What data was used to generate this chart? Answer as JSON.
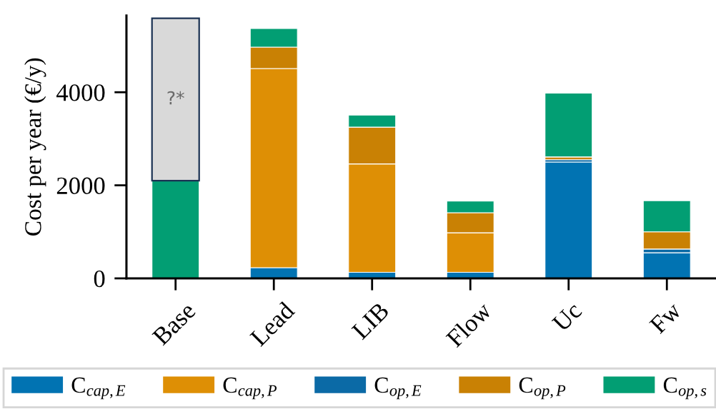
{
  "chart_data": {
    "type": "bar",
    "stacked": true,
    "categories": [
      "Base",
      "Lead",
      "LIB",
      "Flow",
      "Uc",
      "Fw"
    ],
    "ylabel": "Cost per year (€/y)",
    "ylim": [
      0,
      5650
    ],
    "yticks": [
      0,
      2000,
      4000
    ],
    "legend": "bottom",
    "series": [
      {
        "name": "C$_{cap,E}$",
        "color": "#0173b2",
        "values": [
          null,
          230,
          130,
          130,
          2500,
          550
        ]
      },
      {
        "name": "C$_{cap,P}$",
        "color": "#de8f05",
        "values": [
          null,
          4280,
          2330,
          850,
          null,
          null
        ]
      },
      {
        "name": "C$_{op,E}$",
        "color": "#0b6aa6",
        "values": [
          null,
          null,
          null,
          null,
          50,
          80
        ]
      },
      {
        "name": "C$_{op,P}$",
        "color": "#c98104",
        "values": [
          null,
          460,
          790,
          430,
          60,
          370
        ]
      },
      {
        "name": "C$_{op,s}$",
        "color": "#029e73",
        "values": [
          2100,
          400,
          260,
          250,
          1370,
          670
        ]
      },
      {
        "color": "#d9d9d9",
        "values": [
          3490,
          null,
          null,
          null,
          null,
          null
        ],
        "value_labels": [
          "?*",
          null,
          null,
          null,
          null,
          null
        ]
      }
    ]
  }
}
